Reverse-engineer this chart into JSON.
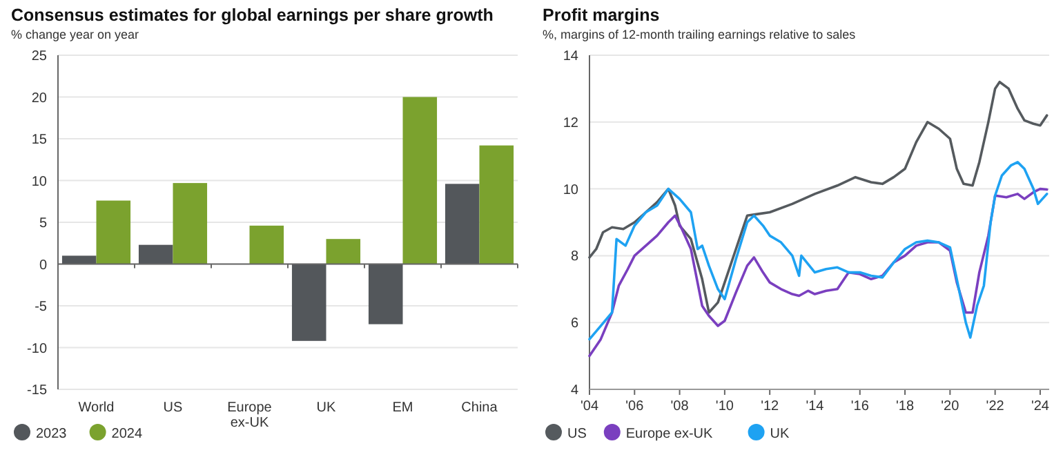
{
  "chart_data": [
    {
      "type": "bar",
      "title": "Consensus estimates for global earnings per share growth",
      "subtitle": "% change year on year",
      "categories": [
        "World",
        "US",
        "Europe ex-UK",
        "UK",
        "EM",
        "China"
      ],
      "series": [
        {
          "name": "2023",
          "color": "#53575b",
          "values": [
            1.0,
            2.3,
            null,
            -9.2,
            -7.2,
            9.6
          ]
        },
        {
          "name": "2024",
          "color": "#7ba22e",
          "values": [
            7.6,
            9.7,
            4.6,
            3.0,
            20.0,
            14.2
          ]
        }
      ],
      "ylim": [
        -15,
        25
      ],
      "yticks": [
        -15,
        -10,
        -5,
        0,
        5,
        10,
        15,
        20,
        25
      ],
      "grid": "y",
      "legend": "bottom left"
    },
    {
      "type": "line",
      "title": "Profit margins",
      "subtitle": "%, margins of 12-month trailing earnings relative to sales",
      "series": [
        {
          "name": "US",
          "color": "#555a5e",
          "x": [
            2004.0,
            2004.3,
            2004.6,
            2005,
            2005.5,
            2006,
            2006.5,
            2007,
            2007.5,
            2007.8,
            2008,
            2008.5,
            2009,
            2009.3,
            2009.7,
            2010,
            2010.5,
            2011,
            2011.5,
            2012,
            2013,
            2014,
            2015,
            2015.8,
            2016.5,
            2017,
            2017.5,
            2018,
            2018.5,
            2019,
            2019.5,
            2020,
            2020.3,
            2020.6,
            2021,
            2021.3,
            2021.7,
            2022,
            2022.2,
            2022.6,
            2023,
            2023.3,
            2023.7,
            2024,
            2024.3
          ],
          "values": [
            7.95,
            8.2,
            8.7,
            8.85,
            8.8,
            9.0,
            9.3,
            9.6,
            10.0,
            9.5,
            8.9,
            8.5,
            7.3,
            6.3,
            6.6,
            7.2,
            8.2,
            9.2,
            9.25,
            9.3,
            9.55,
            9.85,
            10.1,
            10.35,
            10.2,
            10.15,
            10.35,
            10.6,
            11.4,
            12.0,
            11.8,
            11.5,
            10.6,
            10.15,
            10.1,
            10.8,
            12.0,
            13.0,
            13.2,
            13.0,
            12.4,
            12.05,
            11.95,
            11.9,
            12.2
          ]
        },
        {
          "name": "Europe ex-UK",
          "color": "#7a3fbf",
          "x": [
            2004,
            2004.5,
            2005,
            2005.3,
            2005.7,
            2006,
            2006.5,
            2007,
            2007.5,
            2007.8,
            2008.1,
            2008.5,
            2009,
            2009.3,
            2009.7,
            2010,
            2010.5,
            2011,
            2011.3,
            2011.7,
            2012,
            2012.5,
            2013,
            2013.3,
            2013.7,
            2014,
            2014.5,
            2015,
            2015.5,
            2016,
            2016.5,
            2017,
            2017.5,
            2018,
            2018.5,
            2019,
            2019.5,
            2020,
            2020.3,
            2020.7,
            2021,
            2021.3,
            2021.7,
            2022,
            2022.5,
            2023,
            2023.3,
            2023.7,
            2024,
            2024.3
          ],
          "values": [
            5.0,
            5.5,
            6.3,
            7.1,
            7.6,
            8.0,
            8.3,
            8.6,
            9.0,
            9.2,
            8.8,
            8.2,
            6.5,
            6.2,
            5.9,
            6.05,
            6.9,
            7.7,
            7.95,
            7.5,
            7.2,
            7.0,
            6.85,
            6.8,
            6.95,
            6.85,
            6.95,
            7.0,
            7.5,
            7.45,
            7.3,
            7.4,
            7.8,
            8.0,
            8.3,
            8.4,
            8.4,
            8.15,
            7.2,
            6.3,
            6.3,
            7.5,
            8.6,
            9.8,
            9.75,
            9.85,
            9.7,
            9.9,
            10.0,
            9.98
          ]
        },
        {
          "name": "UK",
          "color": "#1ea2f2",
          "x": [
            2004,
            2004.5,
            2005,
            2005.2,
            2005.6,
            2006,
            2006.5,
            2007,
            2007.5,
            2008,
            2008.5,
            2008.8,
            2009,
            2009.3,
            2009.7,
            2010,
            2010.5,
            2011,
            2011.3,
            2011.7,
            2012,
            2012.5,
            2013,
            2013.3,
            2013.4,
            2014,
            2014.5,
            2015,
            2015.5,
            2016,
            2016.5,
            2017,
            2017.5,
            2018,
            2018.5,
            2019,
            2019.5,
            2020,
            2020.3,
            2020.7,
            2020.9,
            2021.2,
            2021.5,
            2021.8,
            2022,
            2022.3,
            2022.7,
            2023,
            2023.3,
            2023.7,
            2023.9,
            2024.3
          ],
          "values": [
            5.5,
            5.9,
            6.3,
            8.5,
            8.3,
            8.9,
            9.3,
            9.5,
            10.0,
            9.7,
            9.3,
            8.2,
            8.3,
            7.7,
            7.0,
            6.7,
            7.9,
            9.0,
            9.2,
            8.9,
            8.6,
            8.4,
            8.0,
            7.4,
            8.0,
            7.5,
            7.6,
            7.65,
            7.5,
            7.5,
            7.4,
            7.35,
            7.8,
            8.2,
            8.4,
            8.45,
            8.4,
            8.25,
            7.3,
            6.0,
            5.55,
            6.5,
            7.1,
            9.0,
            9.8,
            10.4,
            10.7,
            10.8,
            10.6,
            10.0,
            9.55,
            9.85
          ]
        }
      ],
      "xlim": [
        2004,
        2024.4
      ],
      "xticks": [
        {
          "value": 2004,
          "label": "'04"
        },
        {
          "value": 2006,
          "label": "'06"
        },
        {
          "value": 2008,
          "label": "'08"
        },
        {
          "value": 2010,
          "label": "'10"
        },
        {
          "value": 2012,
          "label": "'12"
        },
        {
          "value": 2014,
          "label": "'14"
        },
        {
          "value": 2016,
          "label": "'16"
        },
        {
          "value": 2018,
          "label": "'18"
        },
        {
          "value": 2020,
          "label": "'20"
        },
        {
          "value": 2022,
          "label": "'22"
        },
        {
          "value": 2024,
          "label": "'24"
        }
      ],
      "ylim": [
        4,
        14
      ],
      "yticks": [
        4,
        6,
        8,
        10,
        12,
        14
      ],
      "grid": "y",
      "legend": "bottom left"
    }
  ]
}
